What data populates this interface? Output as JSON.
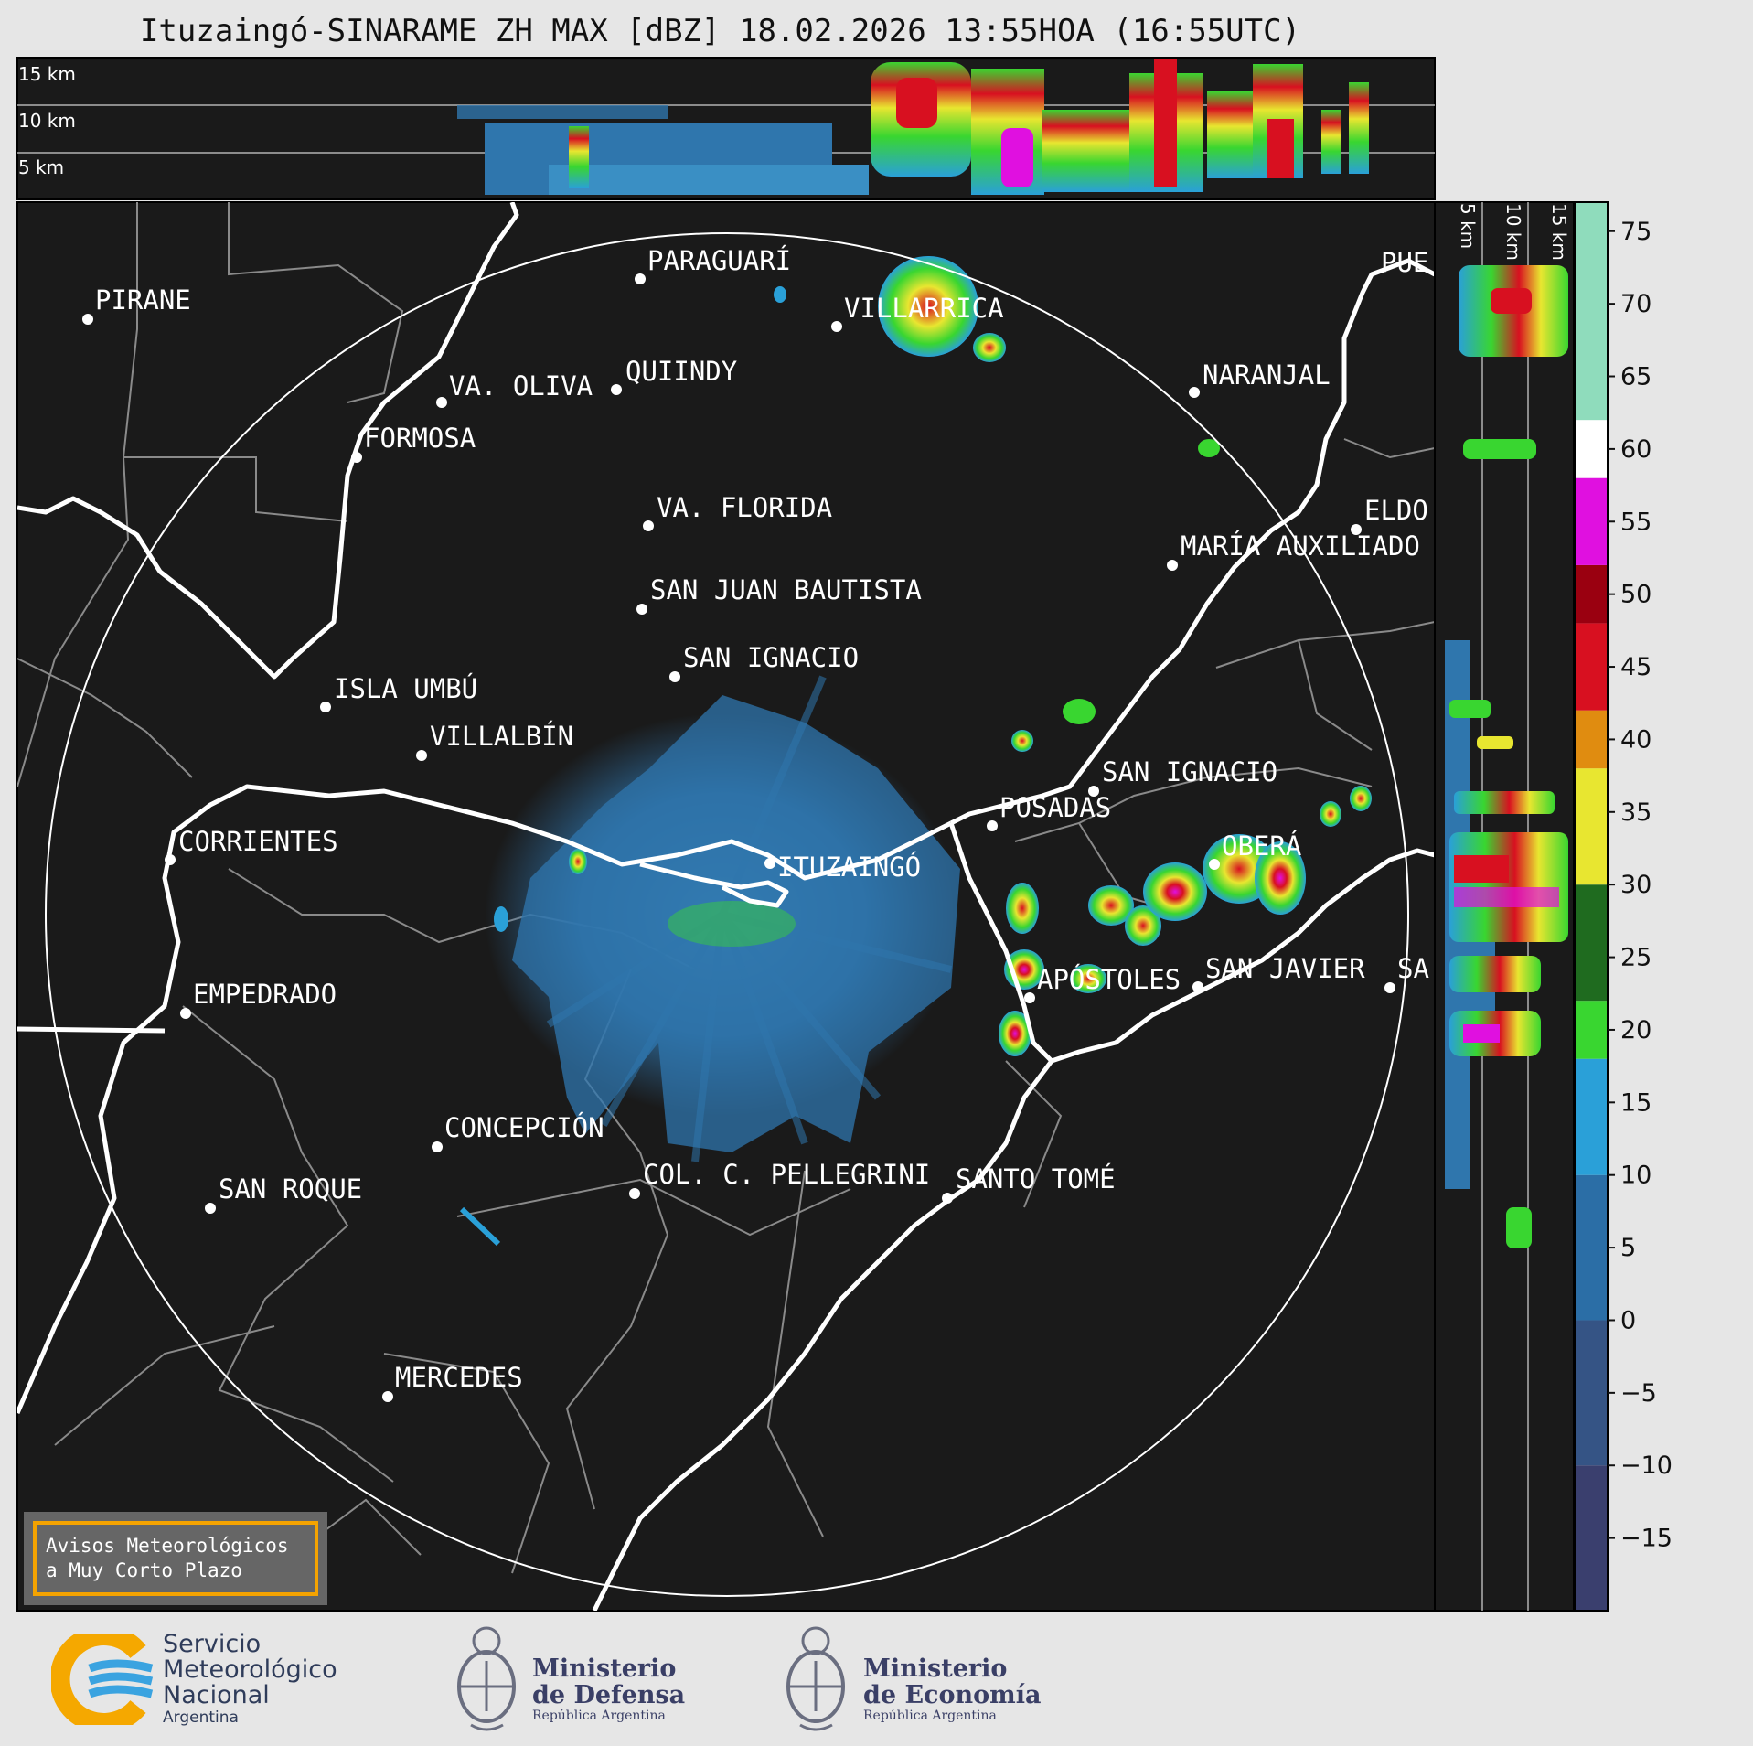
{
  "title": "Ituzaingó-SINARAME ZH MAX [dBZ] 18.02.2026 13:55HOA (16:55UTC)",
  "top_profile": {
    "altitude_labels": [
      "15 km",
      "10 km",
      "5 km"
    ]
  },
  "side_profile": {
    "altitude_labels": [
      "5 km",
      "10 km",
      "15 km"
    ]
  },
  "colorbar": {
    "ticks": [
      "75",
      "70",
      "65",
      "60",
      "55",
      "50",
      "45",
      "40",
      "35",
      "30",
      "25",
      "20",
      "15",
      "10",
      "5",
      "0",
      "−5",
      "−10",
      "−15"
    ],
    "colors": {
      "very_low": "#3a3f6e",
      "low": "#2b6ea6",
      "light": "#2aa0d8",
      "green": "#39d630",
      "dark_green": "#1f6b1f",
      "yellow": "#e8e630",
      "orange": "#e08c10",
      "red": "#d81020",
      "dark_red": "#9a0010",
      "magenta": "#e010e0",
      "white": "#ffffff",
      "mint": "#8fdcbc"
    }
  },
  "cities": [
    {
      "name": "PIRANE"
    },
    {
      "name": "PARAGUARÍ"
    },
    {
      "name": "VILLARRICA"
    },
    {
      "name": "VA. OLIVA"
    },
    {
      "name": "QUIINDY"
    },
    {
      "name": "NARANJAL"
    },
    {
      "name": "FORMOSA"
    },
    {
      "name": "VA. FLORIDA"
    },
    {
      "name": "ELDO"
    },
    {
      "name": "MARÍA AUXILIADO"
    },
    {
      "name": "SAN JUAN BAUTISTA"
    },
    {
      "name": "SAN IGNACIO"
    },
    {
      "name": "ISLA UMBÚ"
    },
    {
      "name": "VILLALBÍN"
    },
    {
      "name": "SAN IGNACIO"
    },
    {
      "name": "POSADAS"
    },
    {
      "name": "CORRIENTES"
    },
    {
      "name": "ITUZAINGÓ"
    },
    {
      "name": "OBERÁ"
    },
    {
      "name": "EMPEDRADO"
    },
    {
      "name": "APÓSTOLES"
    },
    {
      "name": "SAN JAVIER"
    },
    {
      "name": "SA"
    },
    {
      "name": "CONCEPCIÓN"
    },
    {
      "name": "COL. C. PELLEGRINI"
    },
    {
      "name": "SANTO TOMÉ"
    },
    {
      "name": "SAN ROQUE"
    },
    {
      "name": "MERCEDES"
    },
    {
      "name": "PUE"
    }
  ],
  "warning": {
    "line1": "Avisos Meteorológicos",
    "line2": "a Muy Corto Plazo"
  },
  "footer": {
    "smn_line1": "Servicio",
    "smn_line2": "Meteorológico",
    "smn_line3": "Nacional",
    "smn_line4": "Argentina",
    "def_line1": "Ministerio",
    "def_line2": "de Defensa",
    "def_line3": "República Argentina",
    "eco_line1": "Ministerio",
    "eco_line2": "de Economía",
    "eco_line3": "República Argentina"
  }
}
